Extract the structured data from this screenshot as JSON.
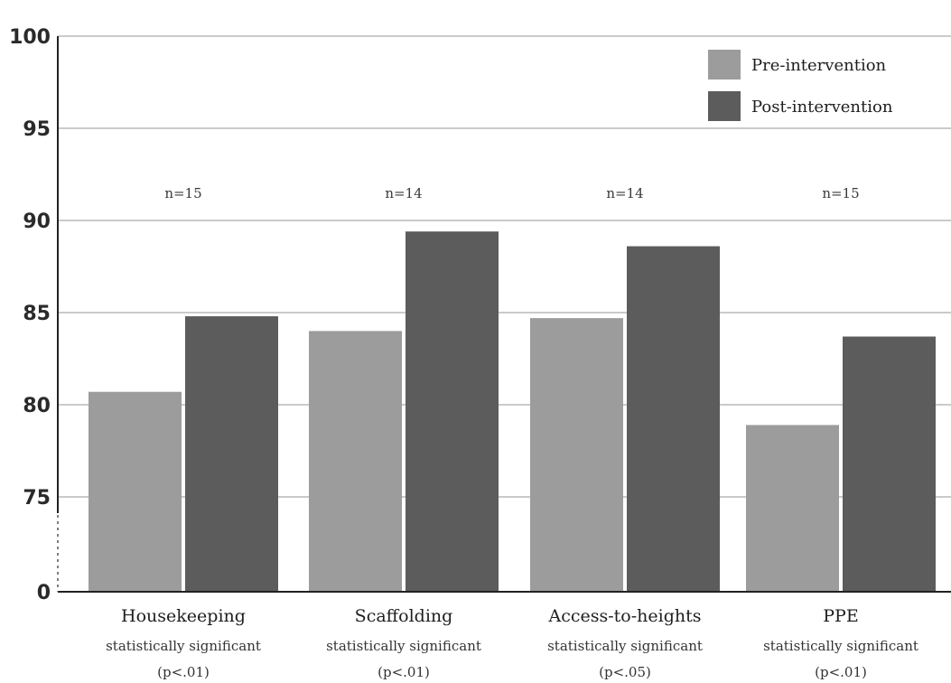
{
  "chart_data": {
    "type": "bar",
    "categories": [
      "Housekeeping",
      "Scaffolding",
      "Access-to-heights",
      "PPE"
    ],
    "category_notes": [
      {
        "label": "statistically significant",
        "p": "(p<.01)"
      },
      {
        "label": "statistically significant",
        "p": "(p<.01)"
      },
      {
        "label": "statistically significant",
        "p": "(p<.05)"
      },
      {
        "label": "statistically significant",
        "p": "(p<.01)"
      }
    ],
    "sample_sizes": [
      "n=15",
      "n=14",
      "n=14",
      "n=15"
    ],
    "series": [
      {
        "name": "Pre-intervention",
        "values": [
          80.7,
          84.0,
          84.7,
          78.9
        ],
        "color": "#9c9c9c"
      },
      {
        "name": "Post-intervention",
        "values": [
          84.8,
          89.4,
          88.6,
          83.7
        ],
        "color": "#5c5c5c"
      }
    ],
    "y_ticks": [
      75,
      80,
      85,
      90,
      95,
      100
    ],
    "y_tick_labels": [
      "75",
      "80",
      "85",
      "90",
      "95",
      "100"
    ],
    "y_baseline_label": "0",
    "ylim": [
      70,
      100
    ],
    "axis_break": true,
    "grid": true,
    "legend_position": "top-right",
    "title": "",
    "xlabel": "",
    "ylabel": ""
  }
}
